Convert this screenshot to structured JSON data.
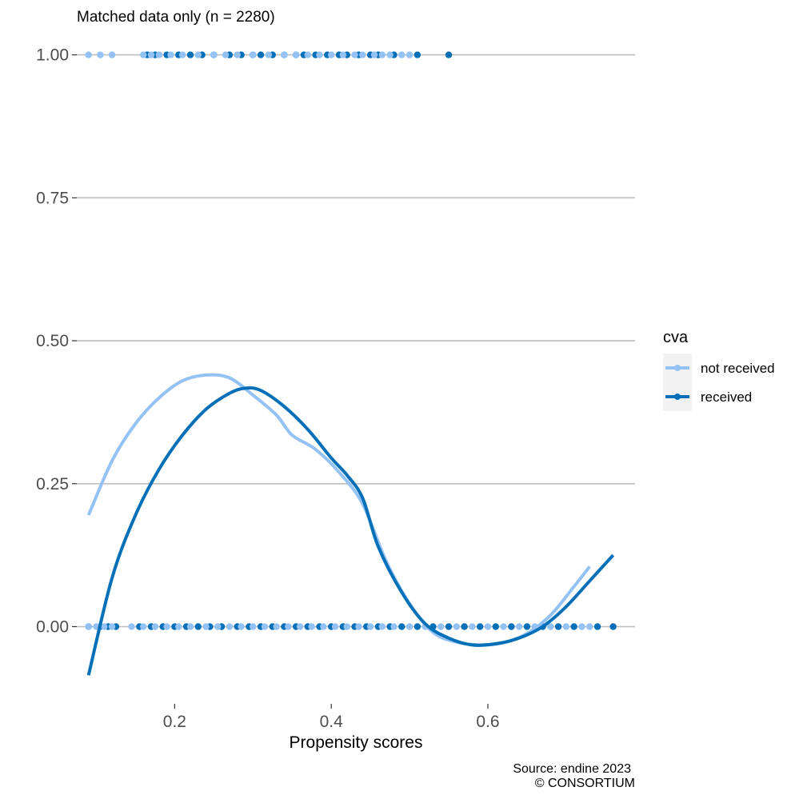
{
  "chart_data": {
    "type": "scatter",
    "title": "Matched data only (n = 2280)",
    "xlabel": "Propensity scores",
    "ylabel": "",
    "xlim": [
      0.075,
      0.79
    ],
    "ylim": [
      -0.135,
      1.04
    ],
    "x_ticks": [
      0.2,
      0.4,
      0.6
    ],
    "x_tick_labels": [
      "0.2",
      "0.4",
      "0.6"
    ],
    "y_ticks": [
      0.0,
      0.25,
      0.5,
      0.75,
      1.0
    ],
    "y_tick_labels": [
      "0.00",
      "0.25",
      "0.50",
      "0.75",
      "1.00"
    ],
    "grid": "horizontal",
    "legend": {
      "title": "cva",
      "position": "right",
      "entries": [
        "not received",
        "received"
      ]
    },
    "caption": [
      "Source: endine 2023",
      "© CONSORTIUM"
    ],
    "series": [
      {
        "name": "not received",
        "color": "#94C2F5",
        "smooth": {
          "x": [
            0.09,
            0.12,
            0.15,
            0.18,
            0.21,
            0.24,
            0.27,
            0.3,
            0.33,
            0.35,
            0.38,
            0.41,
            0.44,
            0.47,
            0.5,
            0.53,
            0.56,
            0.59,
            0.62,
            0.65,
            0.68,
            0.71,
            0.73
          ],
          "y": [
            0.195,
            0.29,
            0.355,
            0.4,
            0.43,
            0.44,
            0.435,
            0.405,
            0.37,
            0.335,
            0.31,
            0.27,
            0.215,
            0.115,
            0.04,
            -0.01,
            -0.027,
            -0.032,
            -0.028,
            -0.012,
            0.02,
            0.07,
            0.105
          ]
        },
        "points_y1": [
          0.09,
          0.105,
          0.12,
          0.16,
          0.17,
          0.18,
          0.195,
          0.21,
          0.23,
          0.25,
          0.265,
          0.28,
          0.3,
          0.32,
          0.34,
          0.355,
          0.37,
          0.385,
          0.4,
          0.415,
          0.43,
          0.44,
          0.455,
          0.465,
          0.475,
          0.49,
          0.5
        ],
        "points_y0": [
          0.09,
          0.1,
          0.11,
          0.12,
          0.145,
          0.16,
          0.175,
          0.19,
          0.205,
          0.22,
          0.24,
          0.255,
          0.27,
          0.285,
          0.3,
          0.315,
          0.33,
          0.345,
          0.36,
          0.375,
          0.39,
          0.405,
          0.42,
          0.435,
          0.45,
          0.465,
          0.48,
          0.5,
          0.52,
          0.54,
          0.56,
          0.58,
          0.6,
          0.62,
          0.64,
          0.66,
          0.68,
          0.7,
          0.72,
          0.73
        ]
      },
      {
        "name": "received",
        "color": "#0570B8",
        "smooth": {
          "x": [
            0.09,
            0.12,
            0.15,
            0.18,
            0.21,
            0.24,
            0.27,
            0.29,
            0.31,
            0.34,
            0.37,
            0.4,
            0.42,
            0.44,
            0.46,
            0.49,
            0.52,
            0.55,
            0.58,
            0.61,
            0.64,
            0.67,
            0.7,
            0.73,
            0.76
          ],
          "y": [
            -0.085,
            0.085,
            0.195,
            0.275,
            0.335,
            0.38,
            0.408,
            0.417,
            0.413,
            0.385,
            0.345,
            0.295,
            0.265,
            0.225,
            0.14,
            0.06,
            0.005,
            -0.02,
            -0.032,
            -0.03,
            -0.02,
            0.0,
            0.035,
            0.08,
            0.125
          ]
        },
        "points_y1": [
          0.165,
          0.175,
          0.19,
          0.205,
          0.22,
          0.235,
          0.25,
          0.27,
          0.285,
          0.3,
          0.31,
          0.325,
          0.34,
          0.355,
          0.365,
          0.38,
          0.395,
          0.41,
          0.42,
          0.435,
          0.45,
          0.46,
          0.48,
          0.51,
          0.55
        ],
        "points_y0": [
          0.09,
          0.105,
          0.115,
          0.125,
          0.155,
          0.17,
          0.185,
          0.2,
          0.215,
          0.23,
          0.245,
          0.26,
          0.28,
          0.295,
          0.31,
          0.325,
          0.34,
          0.355,
          0.37,
          0.385,
          0.4,
          0.415,
          0.43,
          0.445,
          0.46,
          0.475,
          0.49,
          0.51,
          0.53,
          0.55,
          0.57,
          0.59,
          0.61,
          0.63,
          0.65,
          0.67,
          0.69,
          0.71,
          0.74,
          0.76
        ]
      }
    ]
  }
}
